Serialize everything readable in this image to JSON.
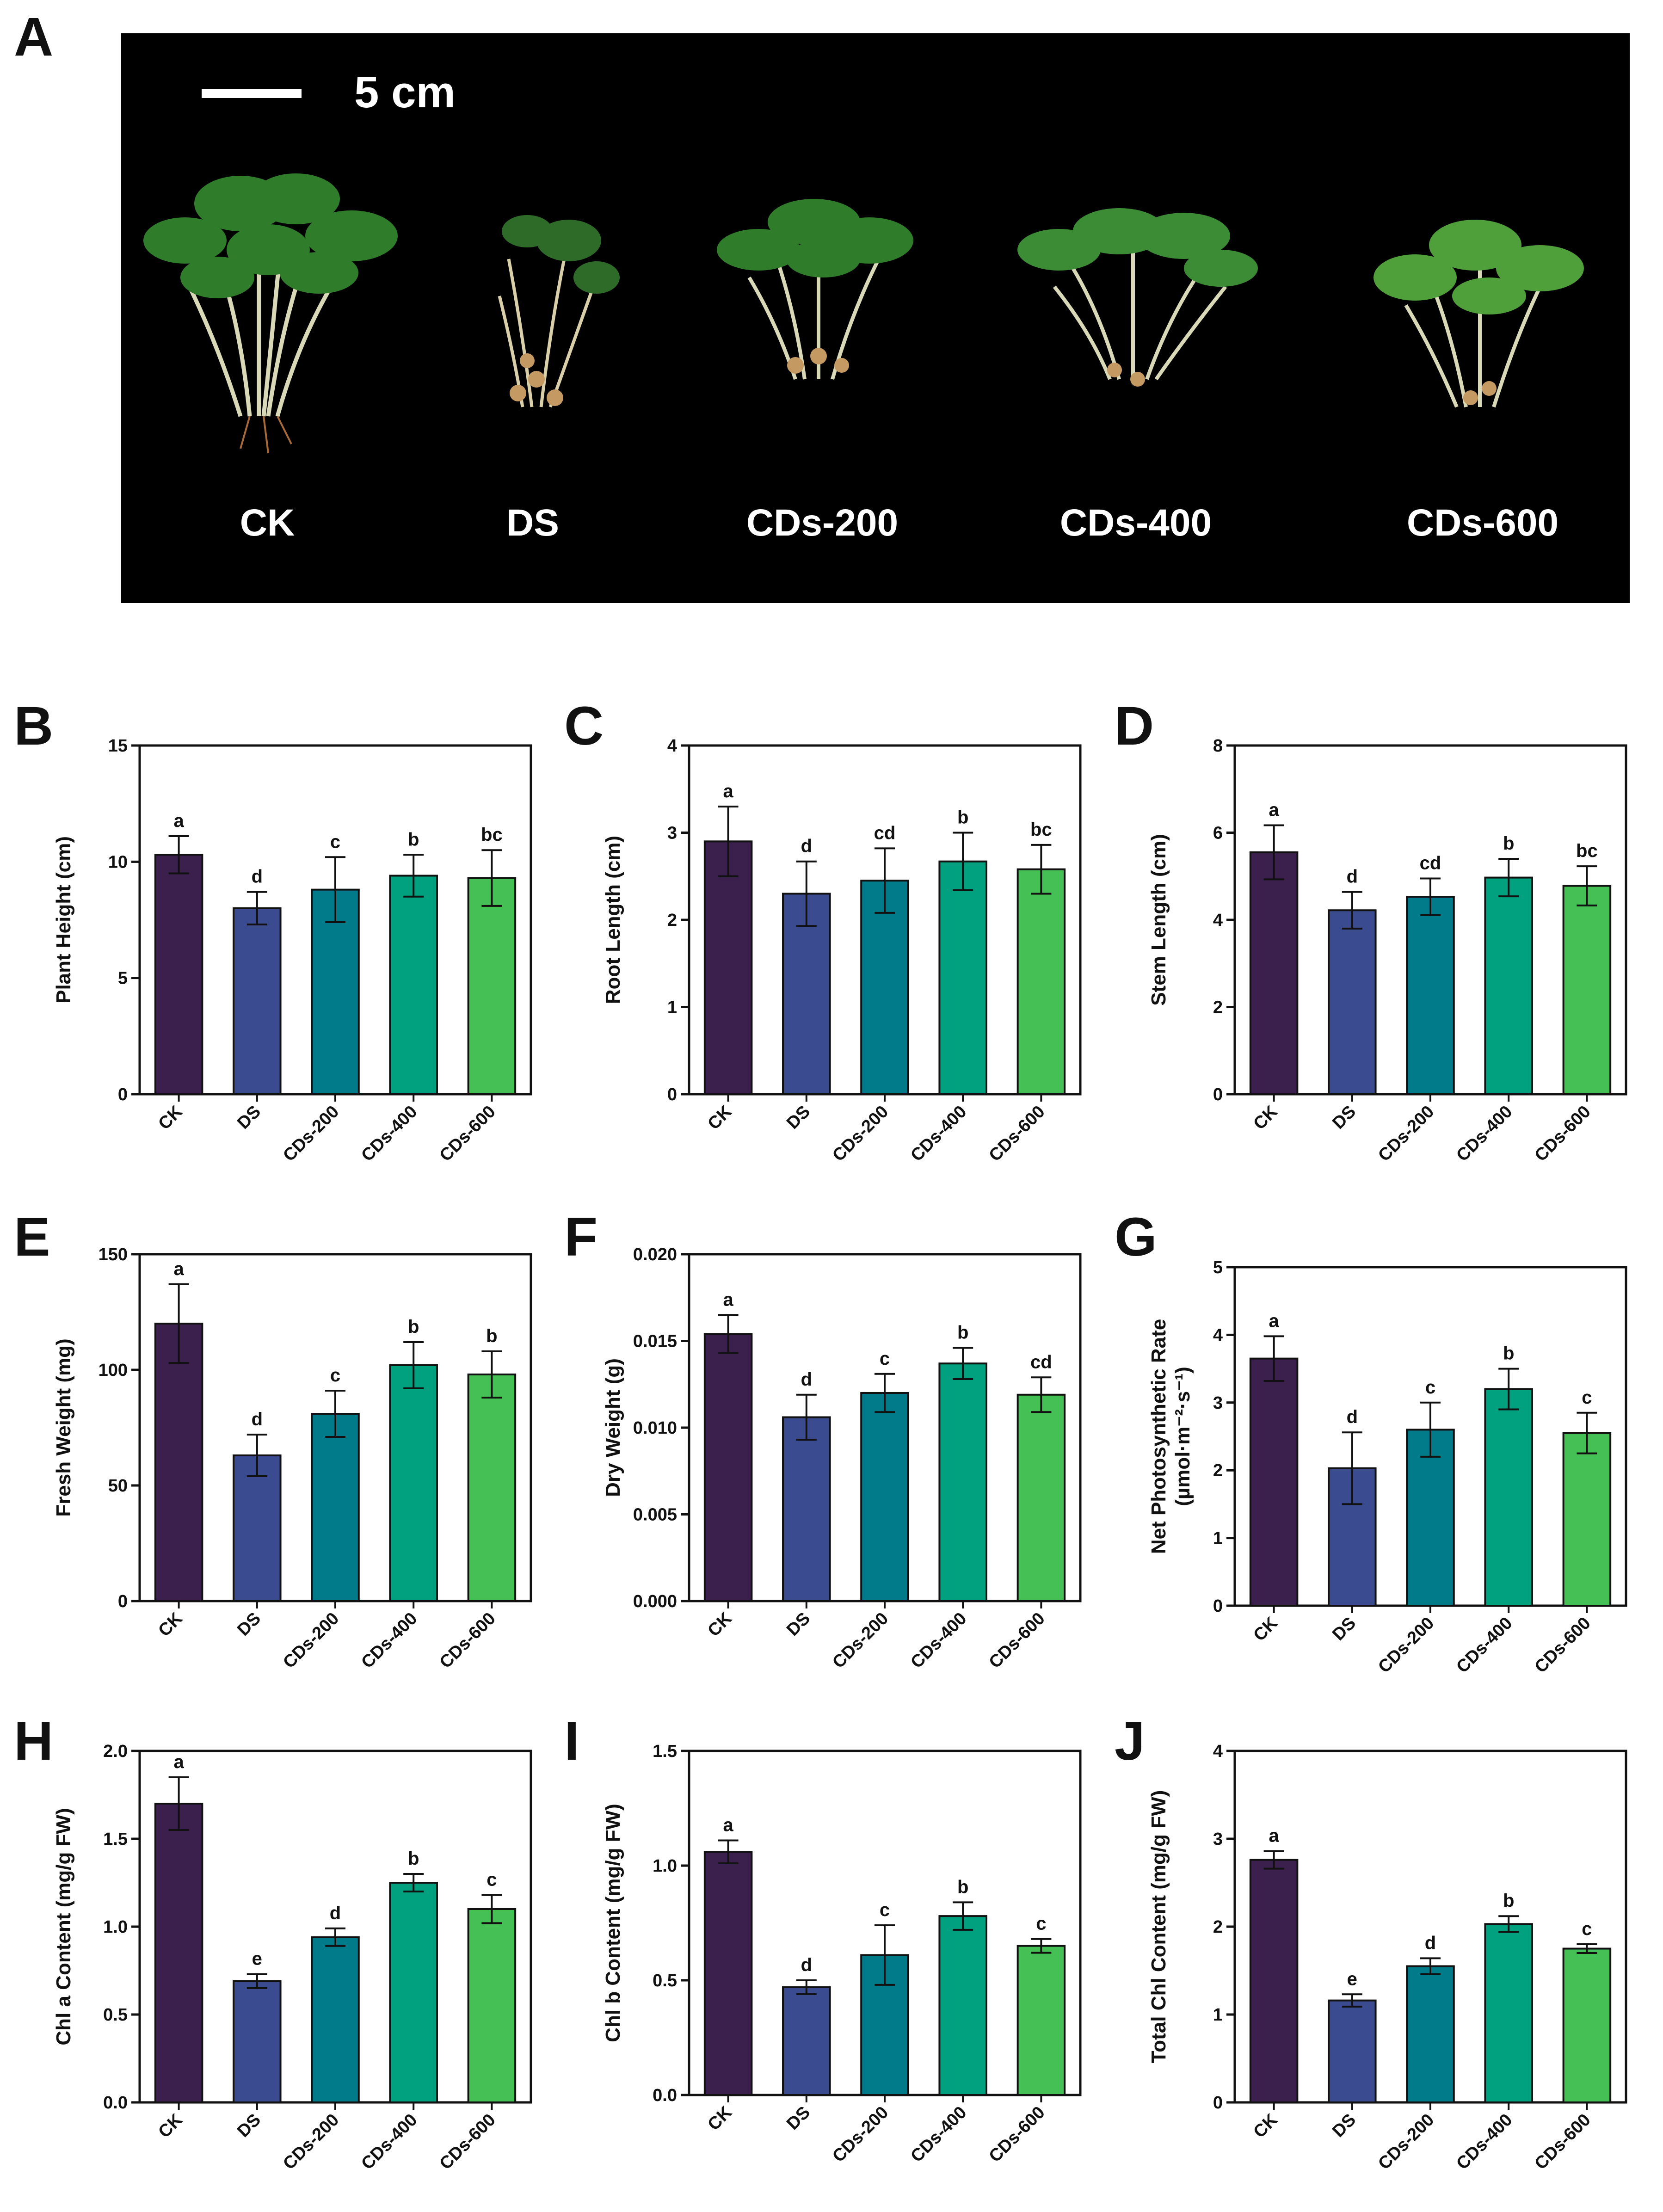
{
  "figure": {
    "panel_a": {
      "letter": "A",
      "scale_bar_label": "5 cm",
      "labels": [
        "CK",
        "DS",
        "CDs-200",
        "CDs-400",
        "CDs-600"
      ]
    }
  },
  "chart_data": [
    {
      "panel": "B",
      "type": "bar",
      "categories": [
        "CK",
        "DS",
        "CDs-200",
        "CDs-400",
        "CDs-600"
      ],
      "values": [
        10.3,
        8.0,
        8.8,
        9.4,
        9.3
      ],
      "errors": [
        0.8,
        0.7,
        1.4,
        0.9,
        1.2
      ],
      "significance": [
        "a",
        "d",
        "c",
        "b",
        "bc"
      ],
      "ylabel": "Plant Height (cm)",
      "ylim": [
        0,
        15
      ],
      "yticks": [
        "0",
        "5",
        "10",
        "15"
      ]
    },
    {
      "panel": "C",
      "type": "bar",
      "categories": [
        "CK",
        "DS",
        "CDs-200",
        "CDs-400",
        "CDs-600"
      ],
      "values": [
        2.9,
        2.3,
        2.45,
        2.67,
        2.58
      ],
      "errors": [
        0.4,
        0.37,
        0.37,
        0.33,
        0.28
      ],
      "significance": [
        "a",
        "d",
        "cd",
        "b",
        "bc"
      ],
      "ylabel": "Root Length (cm)",
      "ylim": [
        0,
        4
      ],
      "yticks": [
        "0",
        "1",
        "2",
        "3",
        "4"
      ]
    },
    {
      "panel": "D",
      "type": "bar",
      "categories": [
        "CK",
        "DS",
        "CDs-200",
        "CDs-400",
        "CDs-600"
      ],
      "values": [
        5.55,
        4.22,
        4.53,
        4.97,
        4.78
      ],
      "errors": [
        0.62,
        0.42,
        0.42,
        0.43,
        0.45
      ],
      "significance": [
        "a",
        "d",
        "cd",
        "b",
        "bc"
      ],
      "ylabel": "Stem Length (cm)",
      "ylim": [
        0,
        8
      ],
      "yticks": [
        "0",
        "2",
        "4",
        "6",
        "8"
      ]
    },
    {
      "panel": "E",
      "type": "bar",
      "categories": [
        "CK",
        "DS",
        "CDs-200",
        "CDs-400",
        "CDs-600"
      ],
      "values": [
        120,
        63,
        81,
        102,
        98
      ],
      "errors": [
        17,
        9,
        10,
        10,
        10
      ],
      "significance": [
        "a",
        "d",
        "c",
        "b",
        "b"
      ],
      "ylabel": "Fresh Weight (mg)",
      "ylim": [
        0,
        150
      ],
      "yticks": [
        "0",
        "50",
        "100",
        "150"
      ]
    },
    {
      "panel": "F",
      "type": "bar",
      "categories": [
        "CK",
        "DS",
        "CDs-200",
        "CDs-400",
        "CDs-600"
      ],
      "values": [
        0.0154,
        0.0106,
        0.012,
        0.0137,
        0.0119
      ],
      "errors": [
        0.0011,
        0.0013,
        0.0011,
        0.0009,
        0.001
      ],
      "significance": [
        "a",
        "d",
        "c",
        "b",
        "cd"
      ],
      "ylabel": "Dry Weight (g)",
      "ylim": [
        0,
        0.02
      ],
      "yticks": [
        "0.000",
        "0.005",
        "0.010",
        "0.015",
        "0.020"
      ]
    },
    {
      "panel": "G",
      "type": "bar",
      "categories": [
        "CK",
        "DS",
        "CDs-200",
        "CDs-400",
        "CDs-600"
      ],
      "values": [
        3.65,
        2.03,
        2.6,
        3.2,
        2.55
      ],
      "errors": [
        0.33,
        0.53,
        0.4,
        0.3,
        0.3
      ],
      "significance": [
        "a",
        "d",
        "c",
        "b",
        "c"
      ],
      "ylabel_lines": [
        "Net Photosynthetic Rate",
        "(µmol·m⁻²·s⁻¹)"
      ],
      "ylim": [
        0,
        5
      ],
      "yticks": [
        "0",
        "1",
        "2",
        "3",
        "4",
        "5"
      ]
    },
    {
      "panel": "H",
      "type": "bar",
      "categories": [
        "CK",
        "DS",
        "CDs-200",
        "CDs-400",
        "CDs-600"
      ],
      "values": [
        1.7,
        0.69,
        0.94,
        1.25,
        1.1
      ],
      "errors": [
        0.15,
        0.04,
        0.05,
        0.05,
        0.08
      ],
      "significance": [
        "a",
        "e",
        "d",
        "b",
        "c"
      ],
      "ylabel": "Chl a Content (mg/g FW)",
      "ylim": [
        0,
        2
      ],
      "yticks": [
        "0.0",
        "0.5",
        "1.0",
        "1.5",
        "2.0"
      ]
    },
    {
      "panel": "I",
      "type": "bar",
      "categories": [
        "CK",
        "DS",
        "CDs-200",
        "CDs-400",
        "CDs-600"
      ],
      "values": [
        1.06,
        0.47,
        0.61,
        0.78,
        0.65
      ],
      "errors": [
        0.05,
        0.03,
        0.13,
        0.06,
        0.03
      ],
      "significance": [
        "a",
        "d",
        "c",
        "b",
        "c"
      ],
      "ylabel": "Chl b Content (mg/g FW)",
      "ylim": [
        0,
        1.5
      ],
      "yticks": [
        "0.0",
        "0.5",
        "1.0",
        "1.5"
      ]
    },
    {
      "panel": "J",
      "type": "bar",
      "categories": [
        "CK",
        "DS",
        "CDs-200",
        "CDs-400",
        "CDs-600"
      ],
      "values": [
        2.76,
        1.16,
        1.55,
        2.03,
        1.75
      ],
      "errors": [
        0.1,
        0.07,
        0.09,
        0.09,
        0.05
      ],
      "significance": [
        "a",
        "e",
        "d",
        "b",
        "c"
      ],
      "ylabel": "Total Chl Content (mg/g FW)",
      "ylim": [
        0,
        4
      ],
      "yticks": [
        "0",
        "1",
        "2",
        "3",
        "4"
      ]
    }
  ],
  "colors": [
    "#3b1f4d",
    "#3a4b8f",
    "#017a8a",
    "#01a07e",
    "#44c054"
  ]
}
